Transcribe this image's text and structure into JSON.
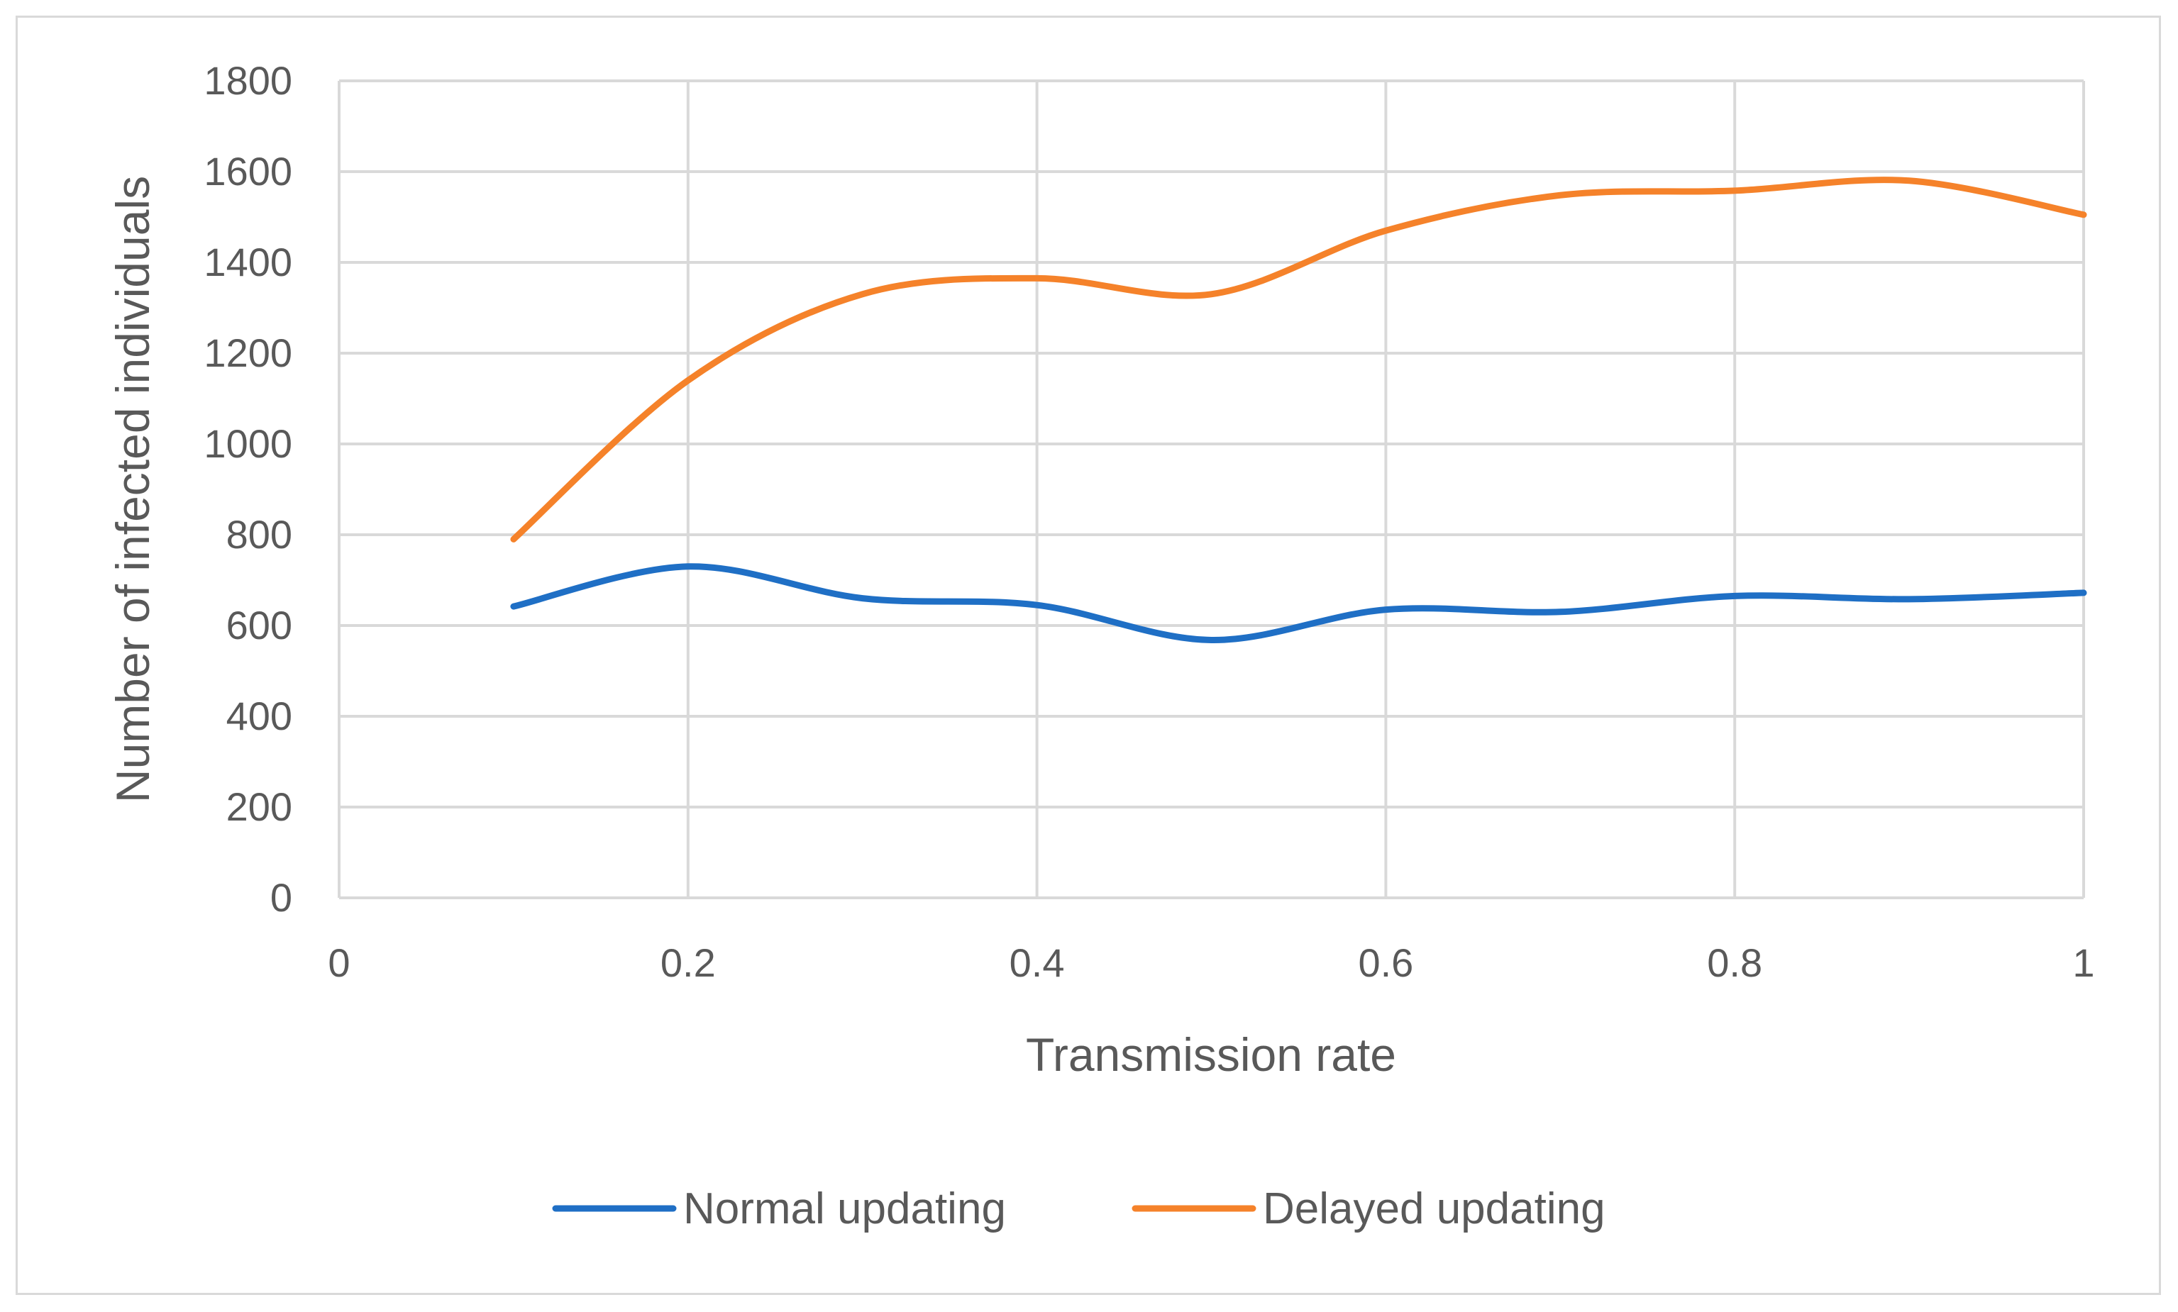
{
  "chart_data": {
    "type": "line",
    "title": "",
    "xlabel": "Transmission rate",
    "ylabel": "Number of infected individuals",
    "xlim": [
      0,
      1
    ],
    "ylim": [
      0,
      1800
    ],
    "x_ticks": [
      "0",
      "0.2",
      "0.4",
      "0.6",
      "0.8",
      "1"
    ],
    "y_ticks": [
      "0",
      "200",
      "400",
      "600",
      "800",
      "1000",
      "1200",
      "1400",
      "1600",
      "1800"
    ],
    "grid": true,
    "smooth": true,
    "legend_position": "bottom",
    "x": [
      0.1,
      0.2,
      0.3,
      0.4,
      0.5,
      0.6,
      0.7,
      0.8,
      0.9,
      1.0
    ],
    "series": [
      {
        "name": "Normal updating",
        "color": "#1f6fc5",
        "values": [
          642,
          730,
          660,
          645,
          568,
          635,
          630,
          665,
          658,
          672
        ]
      },
      {
        "name": "Delayed updating",
        "color": "#f5822a",
        "values": [
          790,
          1140,
          1330,
          1365,
          1330,
          1470,
          1548,
          1558,
          1580,
          1505
        ]
      }
    ]
  }
}
